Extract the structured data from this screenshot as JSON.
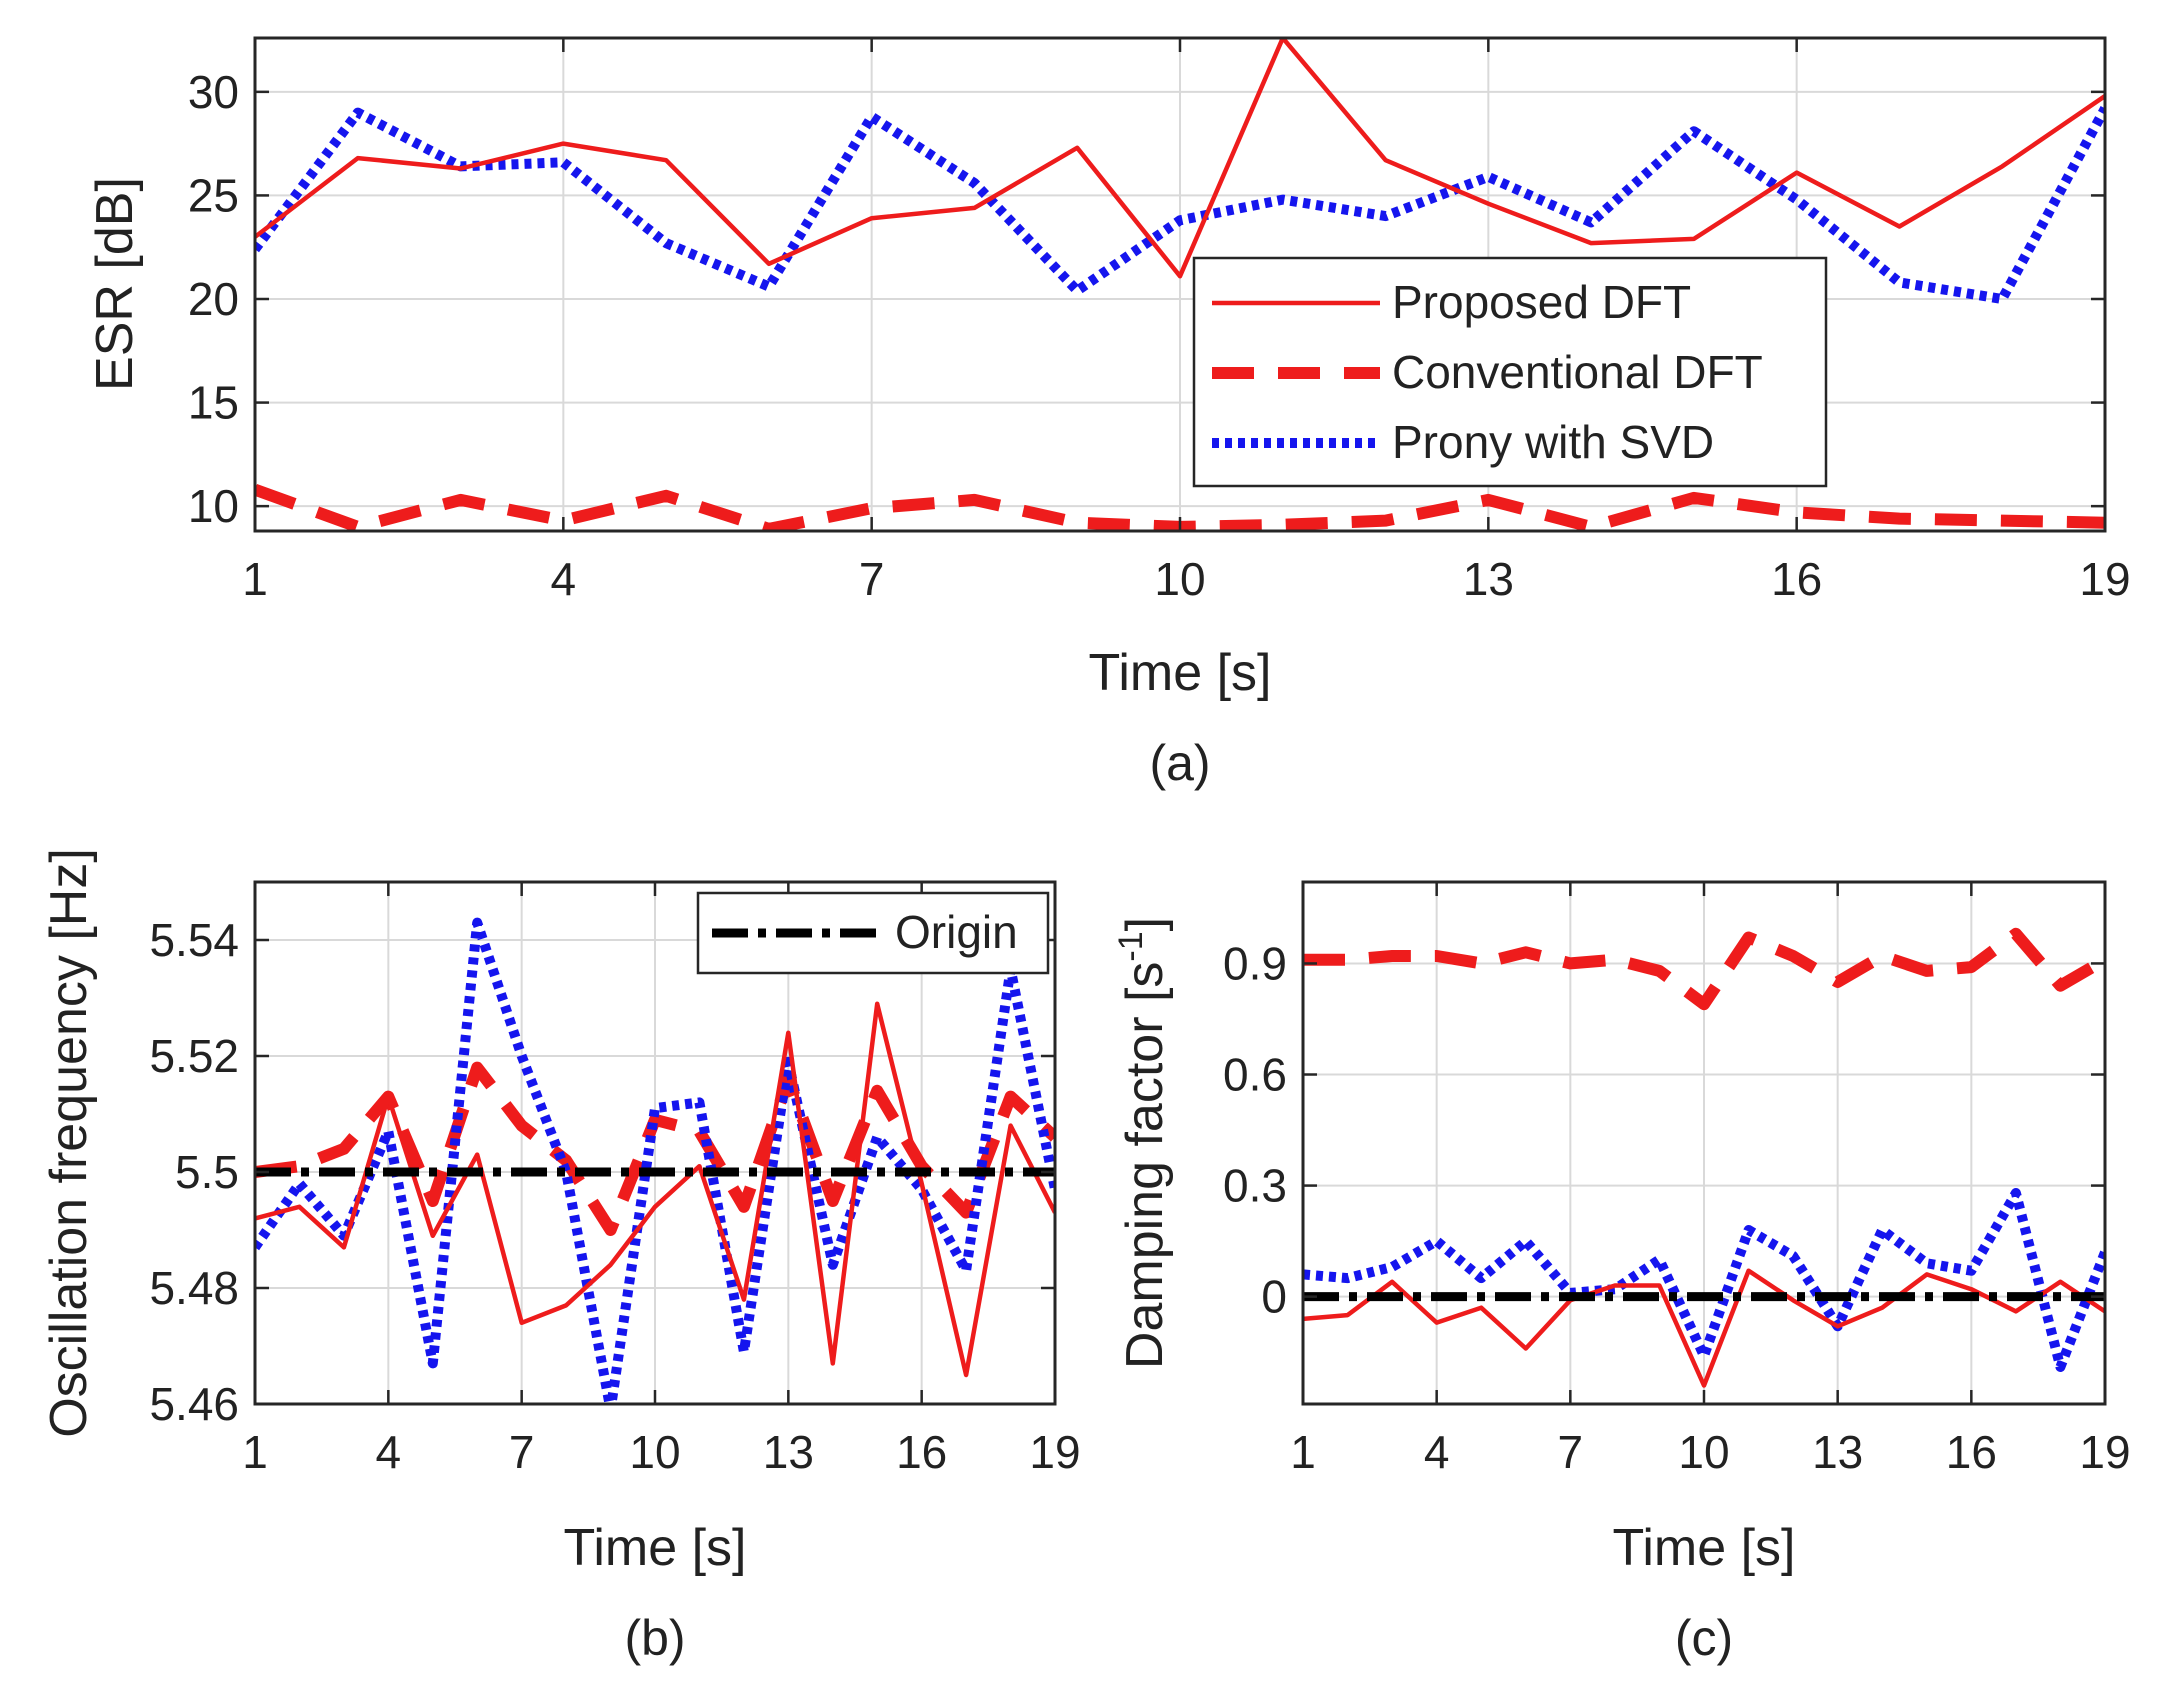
{
  "colors": {
    "proposed": "#ee1c1c",
    "conventional": "#ee1c1c",
    "prony": "#1515ee",
    "origin": "#000000",
    "grid": "#d9d9d9",
    "axis": "#262626"
  },
  "chart_data": [
    {
      "id": "a",
      "type": "line",
      "subtitle": "(a)",
      "xlabel": "Time [s]",
      "ylabel": "ESR [dB]",
      "xlim": [
        1,
        19
      ],
      "ylim": [
        8.8,
        32.6
      ],
      "xticks": [
        1,
        4,
        7,
        10,
        13,
        16,
        19
      ],
      "yticks": [
        10,
        15,
        20,
        25,
        30
      ],
      "grid": true,
      "legend_position": "lower-right",
      "x": [
        1,
        2,
        3,
        4,
        5,
        6,
        7,
        8,
        9,
        10,
        11,
        12,
        13,
        14,
        15,
        16,
        17,
        18,
        19
      ],
      "series": [
        {
          "name": "Proposed DFT",
          "style": "solid",
          "values": [
            23.0,
            26.8,
            26.3,
            27.5,
            26.7,
            21.7,
            23.9,
            24.4,
            27.3,
            21.1,
            32.6,
            26.7,
            24.6,
            22.7,
            22.9,
            26.1,
            23.5,
            26.4,
            29.8
          ]
        },
        {
          "name": "Conventional DFT",
          "style": "dashed",
          "values": [
            10.8,
            9.0,
            10.3,
            9.3,
            10.5,
            8.9,
            9.9,
            10.3,
            9.2,
            9.0,
            9.1,
            9.3,
            10.3,
            9.0,
            10.4,
            9.7,
            9.4,
            9.3,
            9.2
          ]
        },
        {
          "name": "Prony with SVD",
          "style": "dotted",
          "values": [
            22.4,
            29.0,
            26.4,
            26.6,
            22.7,
            20.6,
            28.8,
            25.6,
            20.4,
            23.8,
            24.8,
            24.0,
            25.9,
            23.7,
            28.1,
            24.8,
            20.8,
            20.0,
            29.2
          ]
        }
      ]
    },
    {
      "id": "b",
      "type": "line",
      "subtitle": "(b)",
      "xlabel": "Time [s]",
      "ylabel": "Oscillation frequency [Hz]",
      "xlim": [
        1,
        19
      ],
      "ylim": [
        5.46,
        5.55
      ],
      "xticks": [
        1,
        4,
        7,
        10,
        13,
        16,
        19
      ],
      "yticks": [
        5.46,
        5.48,
        5.5,
        5.52,
        5.54
      ],
      "ytick_labels": [
        "5.46",
        "5.48",
        "5.5",
        "5.52",
        "5.54"
      ],
      "grid": true,
      "legend_position": "top-right",
      "x": [
        1,
        2,
        3,
        4,
        5,
        6,
        7,
        8,
        9,
        10,
        11,
        12,
        13,
        14,
        15,
        16,
        17,
        18,
        19
      ],
      "series": [
        {
          "name": "Origin",
          "style": "dashdot",
          "values": [
            5.5,
            5.5,
            5.5,
            5.5,
            5.5,
            5.5,
            5.5,
            5.5,
            5.5,
            5.5,
            5.5,
            5.5,
            5.5,
            5.5,
            5.5,
            5.5,
            5.5,
            5.5,
            5.5
          ]
        },
        {
          "name": "Proposed DFT",
          "style": "solid",
          "values": [
            5.492,
            5.494,
            5.487,
            5.513,
            5.489,
            5.503,
            5.474,
            5.477,
            5.484,
            5.494,
            5.501,
            5.478,
            5.524,
            5.467,
            5.529,
            5.498,
            5.465,
            5.508,
            5.493
          ]
        },
        {
          "name": "Conventional DFT",
          "style": "dashed",
          "values": [
            5.5,
            5.501,
            5.504,
            5.513,
            5.495,
            5.518,
            5.508,
            5.502,
            5.49,
            5.509,
            5.507,
            5.494,
            5.516,
            5.495,
            5.514,
            5.501,
            5.493,
            5.513,
            5.506
          ]
        },
        {
          "name": "Prony with SVD",
          "style": "dotted",
          "values": [
            5.487,
            5.498,
            5.489,
            5.507,
            5.467,
            5.543,
            5.52,
            5.5,
            5.459,
            5.511,
            5.512,
            5.469,
            5.519,
            5.484,
            5.506,
            5.497,
            5.483,
            5.535,
            5.497
          ]
        }
      ]
    },
    {
      "id": "c",
      "type": "line",
      "subtitle": "(c)",
      "xlabel": "Time [s]",
      "ylabel_main": "Damping factor [s",
      "ylabel_sup": "-1",
      "ylabel_end": "]",
      "xlim": [
        1,
        19
      ],
      "ylim": [
        -0.29,
        1.12
      ],
      "xticks": [
        1,
        4,
        7,
        10,
        13,
        16,
        19
      ],
      "yticks": [
        0,
        0.3,
        0.6,
        0.9
      ],
      "ytick_labels": [
        "0",
        "0.3",
        "0.6",
        "0.9"
      ],
      "grid": true,
      "x": [
        1,
        2,
        3,
        4,
        5,
        6,
        7,
        8,
        9,
        10,
        11,
        12,
        13,
        14,
        15,
        16,
        17,
        18,
        19
      ],
      "series": [
        {
          "style": "dashdot",
          "values": [
            0,
            0,
            0,
            0,
            0,
            0,
            0,
            0,
            0,
            0,
            0,
            0,
            0,
            0,
            0,
            0,
            0,
            0,
            0
          ]
        },
        {
          "style": "solid",
          "values": [
            -0.06,
            -0.05,
            0.04,
            -0.07,
            -0.03,
            -0.14,
            -0.01,
            0.03,
            0.03,
            -0.24,
            0.07,
            -0.01,
            -0.08,
            -0.03,
            0.06,
            0.02,
            -0.04,
            0.04,
            -0.04
          ]
        },
        {
          "style": "dashed",
          "values": [
            0.91,
            0.91,
            0.92,
            0.92,
            0.9,
            0.93,
            0.9,
            0.91,
            0.88,
            0.79,
            0.97,
            0.92,
            0.85,
            0.92,
            0.88,
            0.89,
            0.98,
            0.84,
            0.91
          ]
        },
        {
          "style": "dotted",
          "values": [
            0.06,
            0.05,
            0.08,
            0.15,
            0.05,
            0.15,
            0.01,
            0.02,
            0.1,
            -0.16,
            0.18,
            0.11,
            -0.08,
            0.18,
            0.09,
            0.07,
            0.28,
            -0.19,
            0.12
          ]
        }
      ]
    }
  ]
}
